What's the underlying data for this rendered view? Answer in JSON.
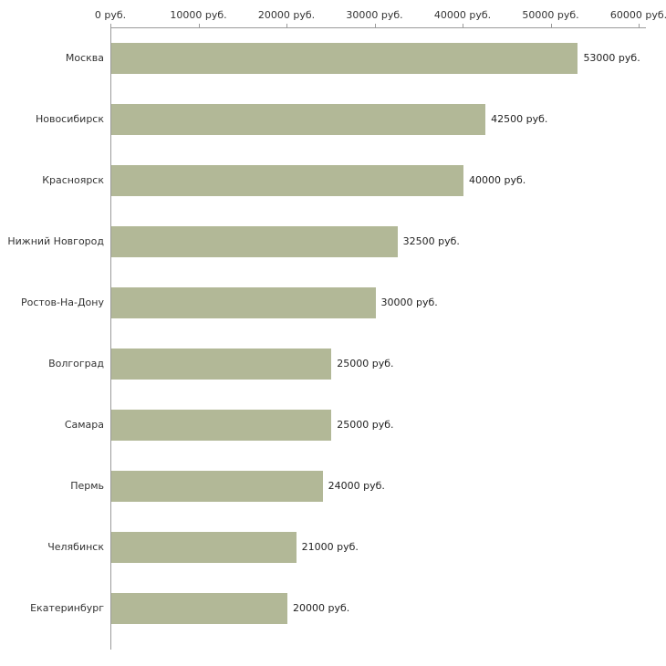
{
  "chart_data": {
    "type": "bar",
    "orientation": "horizontal",
    "title": "",
    "xlabel": "",
    "ylabel": "",
    "categories": [
      "Москва",
      "Новосибирск",
      "Красноярск",
      "Нижний Новгород",
      "Ростов-На-Дону",
      "Волгоград",
      "Самара",
      "Пермь",
      "Челябинск",
      "Екатеринбург"
    ],
    "values": [
      53000,
      42500,
      40000,
      32500,
      30000,
      25000,
      25000,
      24000,
      21000,
      20000
    ],
    "value_labels": [
      "53000 руб.",
      "42500 руб.",
      "40000 руб.",
      "32500 руб.",
      "30000 руб.",
      "25000 руб.",
      "25000 руб.",
      "24000 руб.",
      "21000 руб.",
      "20000 руб."
    ],
    "x_ticks": [
      0,
      10000,
      20000,
      30000,
      40000,
      50000,
      60000
    ],
    "x_tick_labels": [
      "0 руб.",
      "10000 руб.",
      "20000 руб.",
      "30000 руб.",
      "40000 руб.",
      "50000 руб.",
      "60000 руб."
    ],
    "xlim": [
      0,
      60000
    ],
    "grid": false,
    "legend": false,
    "axis_position": "top-left",
    "colors": {
      "bar_fill": "#b2b897",
      "axis_line": "#9a9a9a",
      "tick_text": "#333333",
      "label_text": "#222222",
      "background": "#ffffff"
    }
  }
}
